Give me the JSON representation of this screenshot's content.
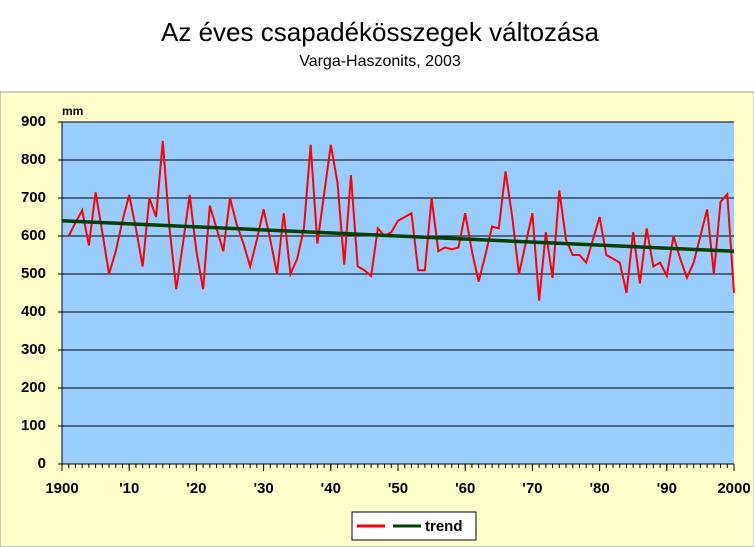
{
  "chart_data": {
    "type": "line",
    "title": "Az éves csapadékösszegek változása",
    "subtitle": "Varga-Haszonits, 2003",
    "y_unit": "mm",
    "x": [
      1901,
      1902,
      1903,
      1904,
      1905,
      1906,
      1907,
      1908,
      1909,
      1910,
      1911,
      1912,
      1913,
      1914,
      1915,
      1916,
      1917,
      1918,
      1919,
      1920,
      1921,
      1922,
      1923,
      1924,
      1925,
      1926,
      1927,
      1928,
      1929,
      1930,
      1931,
      1932,
      1933,
      1934,
      1935,
      1936,
      1937,
      1938,
      1939,
      1940,
      1941,
      1942,
      1943,
      1944,
      1945,
      1946,
      1947,
      1948,
      1949,
      1950,
      1951,
      1952,
      1953,
      1954,
      1955,
      1956,
      1957,
      1958,
      1959,
      1960,
      1961,
      1962,
      1963,
      1964,
      1965,
      1966,
      1967,
      1968,
      1969,
      1970,
      1971,
      1972,
      1973,
      1974,
      1975,
      1976,
      1977,
      1978,
      1979,
      1980,
      1981,
      1982,
      1983,
      1984,
      1985,
      1986,
      1987,
      1988,
      1989,
      1990,
      1991,
      1992,
      1993,
      1994,
      1995,
      1996,
      1997,
      1998,
      1999,
      2000
    ],
    "series": [
      {
        "color": "#ff0000",
        "values": [
          600,
          635,
          668,
          575,
          715,
          610,
          500,
          560,
          640,
          708,
          620,
          520,
          700,
          650,
          850,
          620,
          460,
          580,
          708,
          560,
          460,
          680,
          620,
          560,
          700,
          630,
          580,
          520,
          590,
          670,
          590,
          500,
          660,
          500,
          540,
          620,
          840,
          580,
          710,
          840,
          740,
          525,
          760,
          520,
          510,
          495,
          620,
          600,
          610,
          640,
          650,
          660,
          510,
          510,
          700,
          560,
          570,
          565,
          570,
          660,
          560,
          480,
          550,
          625,
          620,
          770,
          650,
          500,
          580,
          660,
          430,
          610,
          490,
          720,
          590,
          550,
          550,
          530,
          590,
          650,
          550,
          540,
          530,
          450,
          610,
          475,
          620,
          520,
          530,
          495,
          600,
          540,
          490,
          530,
          600,
          670,
          500,
          690,
          710,
          450
        ]
      },
      {
        "name": "trend",
        "color": "#004000",
        "x": [
          1900,
          2000
        ],
        "values": [
          640,
          560
        ]
      }
    ],
    "xlim": [
      1900,
      2000
    ],
    "xticks": [
      1900,
      {
        "value": 1910,
        "label": "'10"
      },
      {
        "value": 1920,
        "label": "'20"
      },
      {
        "value": 1930,
        "label": "'30"
      },
      {
        "value": 1940,
        "label": "'40"
      },
      {
        "value": 1950,
        "label": "'50"
      },
      {
        "value": 1960,
        "label": "'60"
      },
      {
        "value": 1970,
        "label": "'70"
      },
      {
        "value": 1980,
        "label": "'80"
      },
      {
        "value": 1990,
        "label": "'90"
      },
      2000
    ],
    "ylim": [
      0,
      900
    ],
    "yticks": [
      0,
      100,
      200,
      300,
      400,
      500,
      600,
      700,
      800,
      900
    ],
    "grid": true
  }
}
